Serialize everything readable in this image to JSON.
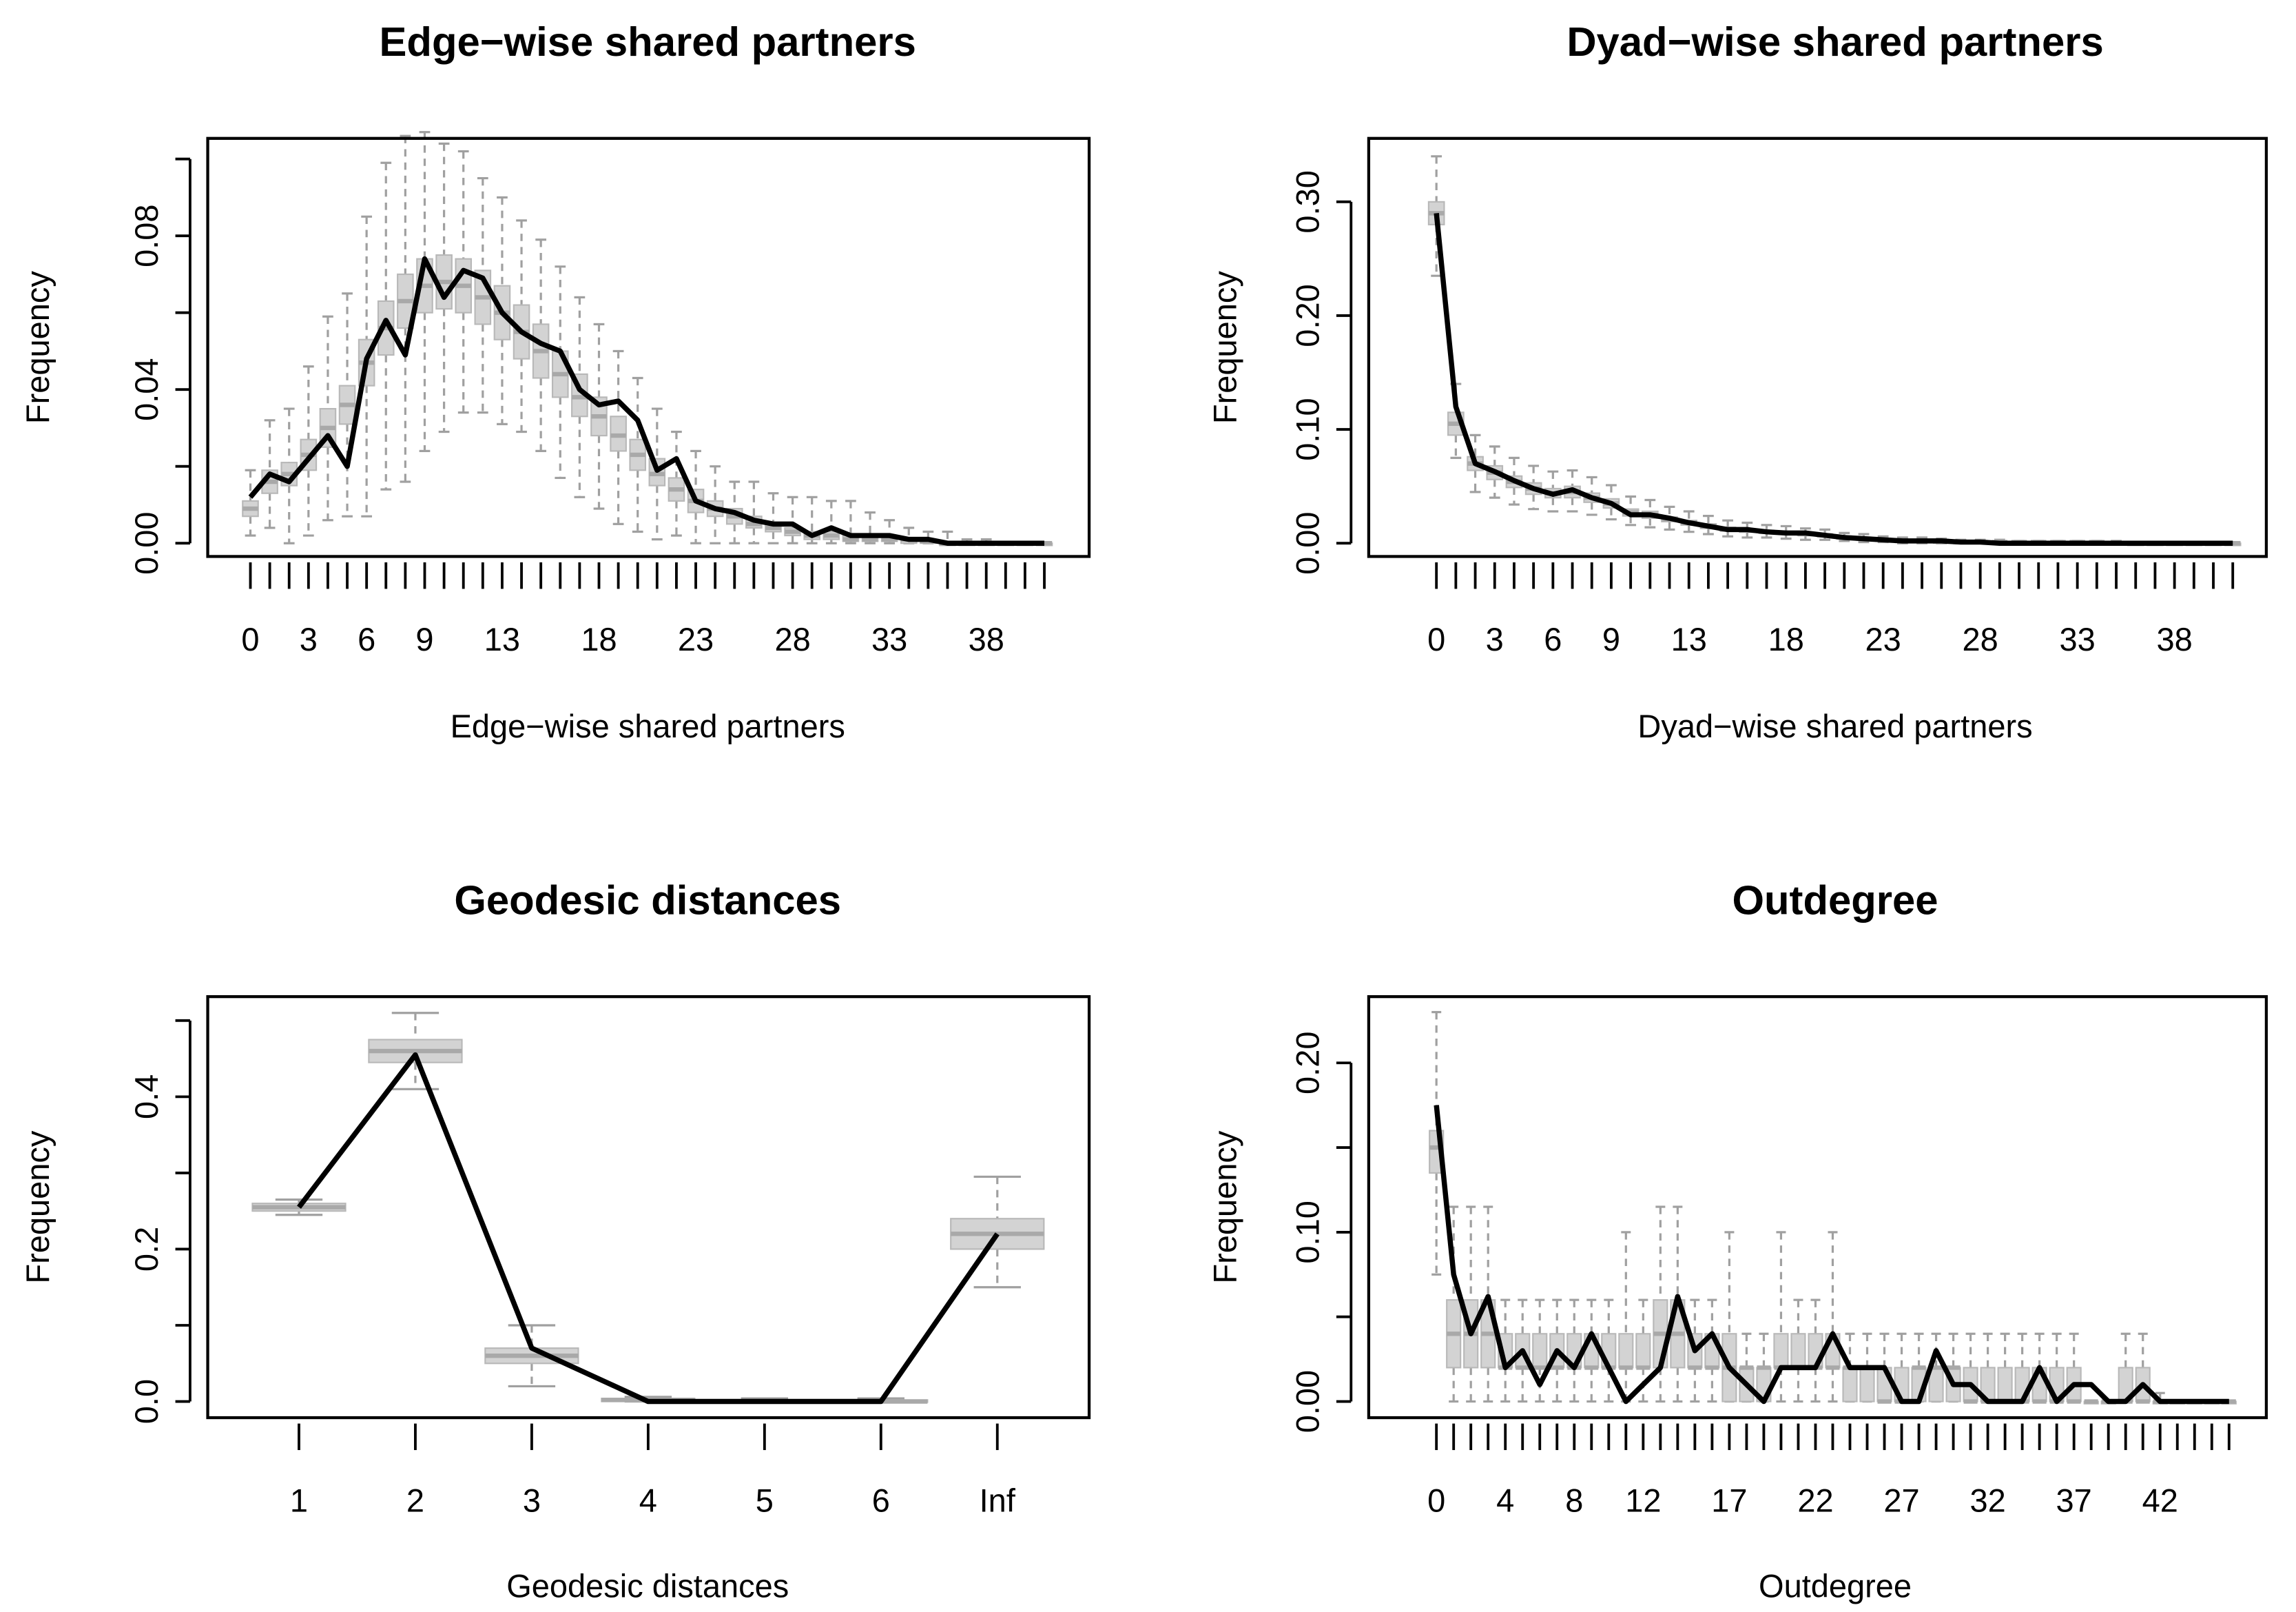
{
  "colors": {
    "box_fill": "#d3d3d3",
    "box_stroke": "#b8b8b8",
    "median": "#a9a9a9",
    "whisker": "#a0a0a0",
    "observed": "#000000"
  },
  "chart_data": [
    {
      "type": "box",
      "title": "Edge−wise shared partners",
      "xlabel": "Edge−wise shared partners",
      "ylabel": "Frequency",
      "categories": [
        0,
        1,
        2,
        3,
        4,
        5,
        6,
        7,
        8,
        9,
        10,
        11,
        12,
        13,
        14,
        15,
        16,
        17,
        18,
        19,
        20,
        21,
        22,
        23,
        24,
        25,
        26,
        27,
        28,
        29,
        30,
        31,
        32,
        33,
        34,
        35,
        36,
        37,
        38,
        39,
        40,
        41
      ],
      "x_tick_labels": [
        "0",
        "3",
        "6",
        "9",
        "13",
        "18",
        "23",
        "28",
        "33",
        "38"
      ],
      "y_ticks": [
        0,
        0.02,
        0.04,
        0.06,
        0.08,
        0.1
      ],
      "y_tick_labels": [
        "0.00",
        "0.04",
        "0.08"
      ],
      "ylim": [
        0,
        0.112
      ],
      "observed": [
        0.012,
        0.018,
        0.016,
        0.022,
        0.028,
        0.02,
        0.048,
        0.058,
        0.049,
        0.074,
        0.064,
        0.071,
        0.069,
        0.06,
        0.055,
        0.052,
        0.05,
        0.04,
        0.036,
        0.037,
        0.032,
        0.019,
        0.022,
        0.011,
        0.009,
        0.008,
        0.006,
        0.005,
        0.005,
        0.002,
        0.004,
        0.002,
        0.002,
        0.002,
        0.001,
        0.001,
        0,
        0,
        0,
        0,
        0,
        0
      ],
      "median": [
        0.009,
        0.016,
        0.018,
        0.023,
        0.03,
        0.036,
        0.047,
        0.056,
        0.063,
        0.067,
        0.068,
        0.067,
        0.064,
        0.06,
        0.055,
        0.05,
        0.044,
        0.038,
        0.033,
        0.028,
        0.023,
        0.018,
        0.014,
        0.011,
        0.009,
        0.007,
        0.005,
        0.004,
        0.003,
        0.002,
        0.002,
        0.001,
        0.001,
        0.001,
        0.001,
        0.0005,
        0,
        0,
        0,
        0,
        0,
        0
      ],
      "q1": [
        0.007,
        0.013,
        0.015,
        0.019,
        0.025,
        0.031,
        0.041,
        0.049,
        0.056,
        0.06,
        0.061,
        0.06,
        0.057,
        0.053,
        0.048,
        0.043,
        0.038,
        0.033,
        0.028,
        0.024,
        0.019,
        0.015,
        0.011,
        0.008,
        0.007,
        0.005,
        0.004,
        0.003,
        0.002,
        0.001,
        0.001,
        0.0005,
        0.0005,
        0.0005,
        0,
        0,
        0,
        0,
        0,
        0,
        0,
        0
      ],
      "q3": [
        0.011,
        0.019,
        0.021,
        0.027,
        0.035,
        0.041,
        0.053,
        0.063,
        0.07,
        0.074,
        0.075,
        0.074,
        0.071,
        0.067,
        0.062,
        0.057,
        0.05,
        0.044,
        0.038,
        0.033,
        0.027,
        0.022,
        0.017,
        0.014,
        0.011,
        0.009,
        0.007,
        0.005,
        0.004,
        0.003,
        0.003,
        0.002,
        0.002,
        0.002,
        0.001,
        0.001,
        0,
        0,
        0,
        0,
        0,
        0
      ],
      "whisker_low": [
        0.002,
        0.004,
        0,
        0.002,
        0.006,
        0.007,
        0.007,
        0.014,
        0.016,
        0.024,
        0.029,
        0.034,
        0.034,
        0.031,
        0.029,
        0.024,
        0.017,
        0.012,
        0.009,
        0.005,
        0.003,
        0.001,
        0.002,
        0,
        0,
        0,
        0,
        0,
        0,
        0,
        0,
        0,
        0,
        0,
        0,
        0,
        0,
        0,
        0,
        0,
        0,
        0
      ],
      "whisker_high": [
        0.019,
        0.032,
        0.035,
        0.046,
        0.059,
        0.065,
        0.085,
        0.099,
        0.106,
        0.107,
        0.104,
        0.102,
        0.095,
        0.09,
        0.084,
        0.079,
        0.072,
        0.064,
        0.057,
        0.05,
        0.043,
        0.035,
        0.029,
        0.024,
        0.02,
        0.016,
        0.016,
        0.013,
        0.012,
        0.012,
        0.011,
        0.011,
        0.008,
        0.006,
        0.004,
        0.003,
        0.003,
        0.001,
        0.001,
        0,
        0,
        0
      ]
    },
    {
      "type": "box",
      "title": "Dyad−wise shared partners",
      "xlabel": "Dyad−wise shared partners",
      "ylabel": "Frequency",
      "categories": [
        0,
        1,
        2,
        3,
        4,
        5,
        6,
        7,
        8,
        9,
        10,
        11,
        12,
        13,
        14,
        15,
        16,
        17,
        18,
        19,
        20,
        21,
        22,
        23,
        24,
        25,
        26,
        27,
        28,
        29,
        30,
        31,
        32,
        33,
        34,
        35,
        36,
        37,
        38,
        39,
        40,
        41
      ],
      "x_tick_labels": [
        "0",
        "3",
        "6",
        "9",
        "13",
        "18",
        "23",
        "28",
        "33",
        "38"
      ],
      "y_ticks": [
        0,
        0.1,
        0.2,
        0.3
      ],
      "y_tick_labels": [
        "0.00",
        "0.10",
        "0.20",
        "0.30"
      ],
      "ylim": [
        0,
        0.35
      ],
      "observed": [
        0.29,
        0.12,
        0.07,
        0.063,
        0.055,
        0.048,
        0.043,
        0.047,
        0.04,
        0.035,
        0.025,
        0.025,
        0.022,
        0.018,
        0.015,
        0.012,
        0.012,
        0.01,
        0.009,
        0.009,
        0.007,
        0.005,
        0.004,
        0.003,
        0.002,
        0.002,
        0.002,
        0.001,
        0.001,
        0,
        0,
        0,
        0,
        0,
        0,
        0,
        0,
        0,
        0,
        0,
        0,
        0
      ],
      "median": [
        0.29,
        0.105,
        0.07,
        0.062,
        0.054,
        0.048,
        0.044,
        0.045,
        0.04,
        0.035,
        0.027,
        0.025,
        0.021,
        0.018,
        0.015,
        0.012,
        0.011,
        0.01,
        0.009,
        0.008,
        0.007,
        0.005,
        0.004,
        0.003,
        0.002,
        0.002,
        0.002,
        0.001,
        0.001,
        0.001,
        0.001,
        0.001,
        0.001,
        0.001,
        0.001,
        0,
        0,
        0,
        0,
        0,
        0,
        0
      ],
      "q1": [
        0.28,
        0.095,
        0.064,
        0.056,
        0.049,
        0.043,
        0.04,
        0.04,
        0.036,
        0.031,
        0.024,
        0.022,
        0.019,
        0.016,
        0.013,
        0.011,
        0.01,
        0.009,
        0.008,
        0.007,
        0.006,
        0.004,
        0.003,
        0.002,
        0.002,
        0.001,
        0.001,
        0.001,
        0.001,
        0,
        0,
        0,
        0,
        0,
        0,
        0,
        0,
        0,
        0,
        0,
        0,
        0
      ],
      "q3": [
        0.3,
        0.115,
        0.076,
        0.068,
        0.059,
        0.053,
        0.048,
        0.05,
        0.044,
        0.039,
        0.03,
        0.028,
        0.023,
        0.02,
        0.017,
        0.014,
        0.012,
        0.011,
        0.01,
        0.009,
        0.008,
        0.006,
        0.005,
        0.004,
        0.003,
        0.003,
        0.002,
        0.002,
        0.002,
        0.001,
        0.001,
        0.001,
        0.001,
        0.001,
        0.001,
        0.001,
        0,
        0,
        0,
        0,
        0,
        0
      ],
      "whisker_low": [
        0.235,
        0.075,
        0.045,
        0.04,
        0.034,
        0.03,
        0.028,
        0.028,
        0.025,
        0.021,
        0.016,
        0.014,
        0.012,
        0.01,
        0.008,
        0.006,
        0.005,
        0.005,
        0.004,
        0.003,
        0.003,
        0.002,
        0.001,
        0.001,
        0,
        0,
        0,
        0,
        0,
        0,
        0,
        0,
        0,
        0,
        0,
        0,
        0,
        0,
        0,
        0,
        0,
        0
      ],
      "whisker_high": [
        0.34,
        0.14,
        0.095,
        0.085,
        0.075,
        0.068,
        0.063,
        0.064,
        0.058,
        0.051,
        0.041,
        0.038,
        0.032,
        0.028,
        0.024,
        0.02,
        0.018,
        0.016,
        0.015,
        0.013,
        0.012,
        0.009,
        0.008,
        0.006,
        0.005,
        0.005,
        0.004,
        0.003,
        0.003,
        0.003,
        0.002,
        0.002,
        0.002,
        0.002,
        0.002,
        0.002,
        0.001,
        0.001,
        0.001,
        0,
        0,
        0
      ]
    },
    {
      "type": "box",
      "title": "Geodesic distances",
      "xlabel": "Geodesic distances",
      "ylabel": "Frequency",
      "categories": [
        "1",
        "2",
        "3",
        "4",
        "5",
        "6",
        "Inf"
      ],
      "x_tick_labels": [
        "1",
        "2",
        "3",
        "4",
        "5",
        "6",
        "Inf"
      ],
      "y_ticks": [
        0,
        0.1,
        0.2,
        0.3,
        0.4,
        0.5
      ],
      "y_tick_labels": [
        "0.0",
        "0.2",
        "0.4"
      ],
      "ylim": [
        0,
        0.52
      ],
      "observed": [
        0.255,
        0.455,
        0.07,
        0,
        0,
        0,
        0.22
      ],
      "median": [
        0.255,
        0.46,
        0.06,
        0.002,
        0,
        0,
        0.22
      ],
      "q1": [
        0.25,
        0.445,
        0.05,
        0,
        0,
        0,
        0.2
      ],
      "q3": [
        0.26,
        0.475,
        0.07,
        0.004,
        0.002,
        0.002,
        0.24
      ],
      "whisker_low": [
        0.245,
        0.41,
        0.02,
        0,
        0,
        0,
        0.15
      ],
      "whisker_high": [
        0.265,
        0.51,
        0.1,
        0.006,
        0.004,
        0.004,
        0.295
      ]
    },
    {
      "type": "box",
      "title": "Outdegree",
      "xlabel": "Outdegree",
      "ylabel": "Frequency",
      "categories": [
        0,
        1,
        2,
        3,
        4,
        5,
        6,
        7,
        8,
        9,
        10,
        11,
        12,
        13,
        14,
        15,
        16,
        17,
        18,
        19,
        20,
        21,
        22,
        23,
        24,
        25,
        26,
        27,
        28,
        29,
        30,
        31,
        32,
        33,
        34,
        35,
        36,
        37,
        38,
        39,
        40,
        41,
        42,
        43,
        44,
        45,
        46
      ],
      "x_tick_labels": [
        "0",
        "4",
        "8",
        "12",
        "17",
        "22",
        "27",
        "32",
        "37",
        "42"
      ],
      "y_ticks": [
        0,
        0.05,
        0.1,
        0.15,
        0.2
      ],
      "y_tick_labels": [
        "0.00",
        "0.10",
        "0.20"
      ],
      "ylim": [
        0,
        0.245
      ],
      "observed": [
        0.175,
        0.075,
        0.04,
        0.062,
        0.02,
        0.03,
        0.01,
        0.03,
        0.02,
        0.04,
        0.02,
        0,
        0.01,
        0.02,
        0.062,
        0.03,
        0.04,
        0.02,
        0.01,
        0,
        0.02,
        0.02,
        0.02,
        0.04,
        0.02,
        0.02,
        0.02,
        0,
        0,
        0.03,
        0.01,
        0.01,
        0,
        0,
        0,
        0.02,
        0,
        0.01,
        0.01,
        0,
        0,
        0.01,
        0,
        0,
        0,
        0,
        0
      ],
      "median": [
        0.15,
        0.04,
        0.04,
        0.04,
        0.02,
        0.02,
        0.02,
        0.02,
        0.02,
        0.02,
        0.02,
        0.02,
        0.02,
        0.04,
        0.04,
        0.02,
        0.02,
        0.02,
        0.02,
        0.02,
        0.02,
        0.02,
        0.02,
        0.02,
        0.02,
        0.02,
        0,
        0,
        0.02,
        0.02,
        0.02,
        0,
        0,
        0,
        0,
        0,
        0,
        0,
        0,
        0,
        0,
        0,
        0,
        0,
        0,
        0,
        0
      ],
      "q1": [
        0.135,
        0.02,
        0.02,
        0.02,
        0.02,
        0.02,
        0.02,
        0.02,
        0.02,
        0.02,
        0.02,
        0.02,
        0.02,
        0.02,
        0.02,
        0.02,
        0.02,
        0,
        0,
        0,
        0.02,
        0.02,
        0.02,
        0.02,
        0,
        0,
        0,
        0,
        0,
        0,
        0,
        0,
        0,
        0,
        0,
        0,
        0,
        0,
        0,
        0,
        0,
        0,
        0,
        0,
        0,
        0,
        0
      ],
      "q3": [
        0.16,
        0.06,
        0.06,
        0.06,
        0.04,
        0.04,
        0.04,
        0.04,
        0.04,
        0.04,
        0.04,
        0.04,
        0.04,
        0.06,
        0.06,
        0.04,
        0.04,
        0.04,
        0.02,
        0.02,
        0.04,
        0.04,
        0.04,
        0.04,
        0.02,
        0.02,
        0.02,
        0.02,
        0.02,
        0.02,
        0.02,
        0.02,
        0.02,
        0.02,
        0.02,
        0.02,
        0.02,
        0.02,
        0,
        0,
        0.02,
        0.02,
        0,
        0,
        0,
        0,
        0
      ],
      "whisker_low": [
        0.075,
        0,
        0,
        0,
        0,
        0,
        0,
        0,
        0,
        0,
        0,
        0,
        0,
        0,
        0,
        0,
        0,
        0,
        0,
        0,
        0,
        0,
        0,
        0,
        0,
        0,
        0,
        0,
        0,
        0,
        0,
        0,
        0,
        0,
        0,
        0,
        0,
        0,
        0,
        0,
        0,
        0,
        0,
        0,
        0,
        0,
        0
      ],
      "whisker_high": [
        0.23,
        0.115,
        0.115,
        0.115,
        0.06,
        0.06,
        0.06,
        0.06,
        0.06,
        0.06,
        0.06,
        0.1,
        0.06,
        0.115,
        0.115,
        0.06,
        0.06,
        0.1,
        0.04,
        0.04,
        0.1,
        0.06,
        0.06,
        0.1,
        0.04,
        0.04,
        0.04,
        0.04,
        0.04,
        0.04,
        0.04,
        0.04,
        0.04,
        0.04,
        0.04,
        0.04,
        0.04,
        0.04,
        0,
        0,
        0.04,
        0.04,
        0.005,
        0,
        0,
        0,
        0
      ]
    }
  ]
}
